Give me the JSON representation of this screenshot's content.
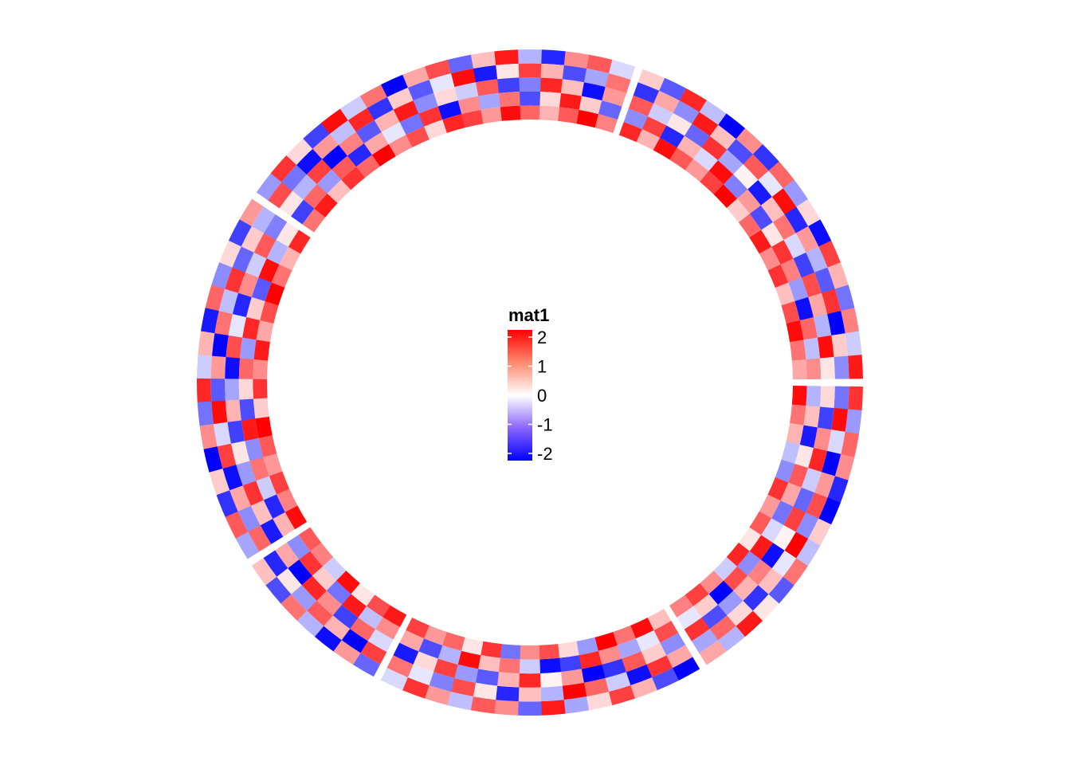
{
  "chart_data": {
    "type": "heatmap",
    "layout": "circular",
    "legend": {
      "title": "mat1",
      "ticks": [
        2,
        1,
        0,
        -1,
        -2
      ],
      "placement": "center"
    },
    "color_scale": {
      "min": -2,
      "mid": 0,
      "max": 2,
      "low_color": "#0000FF",
      "mid_color": "#FFFFFF",
      "high_color": "#FF0000"
    },
    "track_count": 5,
    "sectors": [
      {
        "name": "",
        "rows": [
          [
            1.6,
            -0.8,
            1.2,
            0.9,
            -1.7,
            -2.0,
            0.4,
            -0.5,
            1.1,
            -1.3,
            0.2,
            1.8,
            -0.6,
            0.7
          ],
          [
            -1.1,
            1.9,
            -0.3,
            -2.0,
            0.8,
            1.4,
            -0.9,
            2.0,
            -0.2,
            0.5,
            -1.6,
            0.3,
            1.2,
            -0.7
          ],
          [
            0.3,
            -1.5,
            0.9,
            1.7,
            -0.4,
            -1.2,
            1.5,
            0.1,
            -1.9,
            1.0,
            0.6,
            -0.8,
            -1.4,
            1.6
          ],
          [
            -0.6,
            0.5,
            -1.8,
            0.2,
            1.3,
            0.7,
            -1.1,
            -0.3,
            1.8,
            -0.9,
            1.4,
            -2.0,
            0.4,
            -0.2
          ],
          [
            1.9,
            1.1,
            0.6,
            -0.5,
            -0.9,
            1.6,
            0.8,
            1.3,
            0.2,
            1.7,
            -0.4,
            0.9,
            1.5,
            1.0
          ]
        ]
      },
      {
        "name": "",
        "rows": [
          [
            -2.0,
            -1.4,
            0.6,
            1.5,
            0.3,
            -0.7,
            1.8,
            -1.2,
            0.9,
            1.3,
            -0.5,
            0.8,
            1.6,
            -0.3
          ],
          [
            0.7,
            1.6,
            -1.9,
            -0.4,
            1.2,
            2.0,
            -0.6,
            0.5,
            -1.7,
            0.2,
            1.4,
            -1.0,
            -0.2,
            1.1
          ],
          [
            -0.9,
            0.4,
            1.3,
            -1.6,
            -2.0,
            0.8,
            0.1,
            1.7,
            0.6,
            -1.3,
            -0.8,
            1.5,
            0.3,
            -1.8
          ],
          [
            1.4,
            -0.2,
            -0.7,
            0.9,
            1.7,
            -1.5,
            -1.9,
            -0.4,
            1.1,
            0.5,
            1.9,
            -0.6,
            -1.4,
            0.7
          ],
          [
            0.5,
            1.9,
            1.1,
            2.0,
            -0.8,
            0.3,
            1.4,
            0.9,
            -1.1,
            1.6,
            0.2,
            1.2,
            0.8,
            1.5
          ]
        ]
      },
      {
        "name": "",
        "rows": [
          [
            -1.2,
            0.8,
            -1.9,
            -0.6,
            1.1,
            -1.4,
            0.5
          ],
          [
            1.5,
            -2.0,
            0.6,
            1.3,
            -0.8,
            0.2,
            -1.7
          ],
          [
            -0.3,
            1.2,
            -1.5,
            0.9,
            1.7,
            -2.0,
            0.7
          ],
          [
            0.9,
            -0.5,
            1.8,
            -1.1,
            0.4,
            1.6,
            -0.9
          ],
          [
            1.8,
            1.4,
            0.2,
            1.9,
            -0.4,
            1.0,
            1.3
          ]
        ]
      },
      {
        "name": "",
        "rows": [
          [
            -0.7,
            1.3,
            -1.6,
            0.4,
            -2.0,
            0.9,
            -1.1,
            1.7,
            -0.4,
            0.6,
            -1.8,
            1.2,
            -0.9,
            0.3,
            -1.5,
            0.8
          ],
          [
            1.2,
            -0.9,
            0.7,
            -1.9,
            1.5,
            -0.3,
            1.9,
            -1.3,
            0.8,
            -2.0,
            1.1,
            -0.5,
            1.6,
            -1.2,
            0.4,
            -0.6
          ],
          [
            -1.8,
            0.5,
            1.6,
            -0.8,
            0.2,
            -1.5,
            0.6,
            -0.7,
            -1.9,
            1.4,
            -0.2,
            -1.7,
            0.9,
            -0.4,
            1.3,
            -1.0
          ],
          [
            0.6,
            -1.7,
            -0.4,
            1.1,
            -0.9,
            1.8,
            -1.4,
            0.3,
            1.2,
            -0.8,
            1.7,
            0.4,
            -1.3,
            1.9,
            -0.6,
            0.2
          ],
          [
            1.9,
            1.0,
            1.5,
            0.8,
            1.3,
            2.0,
            0.4,
            1.6,
            0.9,
            1.8,
            0.7,
            1.4,
            2.0,
            1.1,
            0.6,
            1.7
          ]
        ]
      },
      {
        "name": "",
        "rows": [
          [
            -0.8,
            1.6,
            0.3,
            -1.5,
            1.9,
            -0.4,
            1.1,
            -2.0,
            0.7,
            1.4,
            -1.2,
            0.5,
            1.8,
            -0.6,
            -1.7,
            0.9,
            1.3,
            -0.3
          ],
          [
            1.4,
            -1.1,
            -1.9,
            0.8,
            -0.5,
            1.7,
            -1.6,
            0.4,
            -1.3,
            -0.2,
            1.9,
            -1.8,
            0.2,
            1.5,
            0.6,
            -1.4,
            -0.7,
            1.1
          ],
          [
            0.2,
            -0.6,
            1.5,
            -2.0,
            1.0,
            -1.3,
            0.6,
            1.8,
            -0.9,
            0.3,
            -0.4,
            1.3,
            -1.5,
            -1.0,
            1.7,
            0.5,
            -1.9,
            0.8
          ],
          [
            -1.5,
            1.2,
            -0.8,
            1.3,
            -1.7,
            0.7,
            -0.2,
            -1.1,
            1.6,
            -1.9,
            0.9,
            -0.7,
            1.1,
            -1.4,
            0.3,
            1.8,
            0.4,
            -1.2
          ],
          [
            1.1,
            1.8,
            0.5,
            1.6,
            1.2,
            2.0,
            0.9,
            1.4,
            0.3,
            1.7,
            1.5,
            0.8,
            1.9,
            1.2,
            0.6,
            1.3,
            2.0,
            1.0
          ]
        ]
      },
      {
        "name": "",
        "rows": [
          [
            0.4,
            -1.3,
            1.7,
            -0.5,
            -2.0,
            0.9,
            -1.6,
            1.2,
            -0.8,
            0.3,
            -1.9,
            1.5,
            0.6,
            -1.1,
            1.0,
            -0.4,
            1.8
          ],
          [
            -1.6,
            0.7,
            -0.9,
            1.8,
            0.5,
            -1.4,
            1.3,
            -0.2,
            1.9,
            -1.7,
            0.8,
            -0.6,
            -1.3,
            1.6,
            -2.0,
            0.4,
            -0.9
          ],
          [
            1.3,
            -0.4,
            0.2,
            -1.2,
            1.6,
            -0.7,
            0.1,
            -1.8,
            0.5,
            1.1,
            -0.3,
            -1.5,
            1.4,
            0.7,
            -0.6,
            1.9,
            0.2
          ],
          [
            -0.9,
            1.5,
            -1.7,
            0.6,
            -0.3,
            1.9,
            -1.0,
            0.8,
            -1.4,
            0.2,
            1.6,
            1.0,
            -0.8,
            -1.9,
            1.2,
            -0.5,
            0.9
          ],
          [
            1.7,
            0.6,
            1.9,
            1.3,
            0.8,
            1.5,
            2.0,
            0.4,
            1.2,
            1.8,
            0.9,
            1.6,
            0.5,
            1.4,
            1.9,
            1.1,
            0.7
          ]
        ]
      }
    ]
  }
}
